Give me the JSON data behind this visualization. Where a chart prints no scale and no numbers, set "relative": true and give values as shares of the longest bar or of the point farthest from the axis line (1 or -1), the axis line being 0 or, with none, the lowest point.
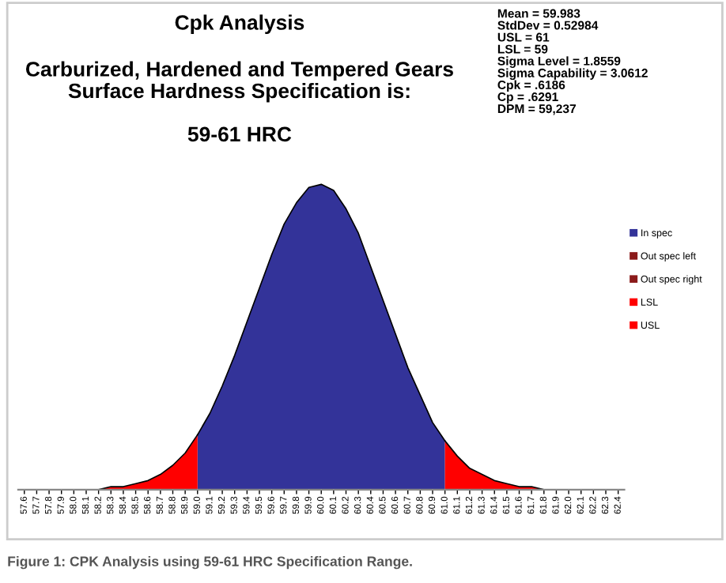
{
  "chart_data": {
    "type": "area",
    "relative": true,
    "title": "Cpk Analysis",
    "subtitle": "Carburized, Hardened and Tempered Gears\nSurface Hardness Specification is:\n\n59-61 HRC",
    "categories": [
      "57.6",
      "57.7",
      "57.8",
      "57.9",
      "58.0",
      "58.1",
      "58.2",
      "58.3",
      "58.4",
      "58.5",
      "58.6",
      "58.7",
      "58.8",
      "58.9",
      "59.0",
      "59.1",
      "59.2",
      "59.3",
      "59.4",
      "59.5",
      "59.6",
      "59.7",
      "59.8",
      "59.9",
      "60.0",
      "60.1",
      "60.2",
      "60.3",
      "60.4",
      "60.5",
      "60.6",
      "60.7",
      "60.8",
      "60.9",
      "61.0",
      "61.1",
      "61.2",
      "61.3",
      "61.4",
      "61.5",
      "61.6",
      "61.7",
      "61.8",
      "61.9",
      "62.0",
      "62.1",
      "62.2",
      "62.3",
      "62.4"
    ],
    "series": [
      {
        "name": "In spec",
        "color": "#333399",
        "values": [
          null,
          null,
          null,
          null,
          null,
          null,
          null,
          null,
          null,
          null,
          null,
          null,
          null,
          null,
          0.18,
          0.25,
          0.34,
          0.44,
          0.55,
          0.66,
          0.77,
          0.87,
          0.94,
          0.99,
          1.0,
          0.98,
          0.92,
          0.84,
          0.73,
          0.62,
          0.51,
          0.4,
          0.31,
          0.22,
          0.16,
          null,
          null,
          null,
          null,
          null,
          null,
          null,
          null,
          null,
          null,
          null,
          null,
          null,
          null
        ]
      },
      {
        "name": "Out spec left",
        "color": "#8b1a1a",
        "values": [
          null,
          null,
          null,
          null,
          null,
          null,
          null,
          null,
          null,
          null,
          null,
          null,
          null,
          null,
          null,
          null,
          null,
          null,
          null,
          null,
          null,
          null,
          null,
          null,
          null,
          null,
          null,
          null,
          null,
          null,
          null,
          null,
          null,
          null,
          null,
          null,
          null,
          null,
          null,
          null,
          null,
          null,
          null,
          null,
          null,
          null,
          null,
          null,
          null
        ]
      },
      {
        "name": "Out spec right",
        "color": "#8b1a1a",
        "values": [
          null,
          null,
          null,
          null,
          null,
          null,
          null,
          null,
          null,
          null,
          null,
          null,
          null,
          null,
          null,
          null,
          null,
          null,
          null,
          null,
          null,
          null,
          null,
          null,
          null,
          null,
          null,
          null,
          null,
          null,
          null,
          null,
          null,
          null,
          null,
          null,
          null,
          null,
          null,
          null,
          null,
          null,
          null,
          null,
          null,
          null,
          null,
          null,
          null
        ]
      },
      {
        "name": "LSL",
        "color": "#ff0000",
        "values": [
          0,
          0,
          0,
          0,
          0,
          0,
          0,
          0.01,
          0.01,
          0.02,
          0.03,
          0.05,
          0.08,
          0.12,
          0.18,
          null,
          null,
          null,
          null,
          null,
          null,
          null,
          null,
          null,
          null,
          null,
          null,
          null,
          null,
          null,
          null,
          null,
          null,
          null,
          null,
          null,
          null,
          null,
          null,
          null,
          null,
          null,
          null,
          null,
          null,
          null,
          null,
          null,
          null
        ]
      },
      {
        "name": "USL",
        "color": "#ff0000",
        "values": [
          null,
          null,
          null,
          null,
          null,
          null,
          null,
          null,
          null,
          null,
          null,
          null,
          null,
          null,
          null,
          null,
          null,
          null,
          null,
          null,
          null,
          null,
          null,
          null,
          null,
          null,
          null,
          null,
          null,
          null,
          null,
          null,
          null,
          null,
          0.16,
          0.11,
          0.07,
          0.05,
          0.03,
          0.02,
          0.01,
          0.01,
          0,
          0,
          0,
          0,
          0,
          0,
          0
        ]
      }
    ],
    "legend": "right",
    "annotations": [
      "Mean = 59.983\nStdDev = 0.52984\nUSL = 61\nLSL = 59\nSigma Level = 1.8559\nSigma Capability = 3.0612\nCpk = .6186\nCp = .6291\nDPM = 59,237",
      "Figure 1: CPK Analysis using 59-61 HRC Specification Range."
    ]
  }
}
